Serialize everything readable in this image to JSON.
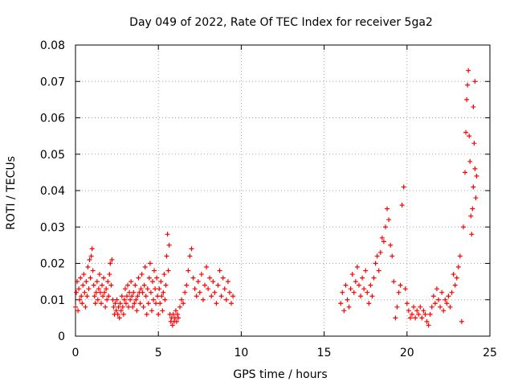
{
  "chart_data": {
    "type": "scatter",
    "title": "Day 049 of 2022, Rate Of TEC Index for receiver 5ga2",
    "xlabel": "GPS time / hours",
    "ylabel": "ROTI / TECUs",
    "xlim": [
      0,
      25
    ],
    "ylim": [
      0,
      0.08
    ],
    "xticks": [
      0,
      5,
      10,
      15,
      20,
      25
    ],
    "yticks": [
      0,
      0.01,
      0.02,
      0.03,
      0.04,
      0.05,
      0.06,
      0.07,
      0.08
    ],
    "xtick_labels": [
      "0",
      "5",
      "10",
      "15",
      "20",
      "25"
    ],
    "ytick_labels": [
      "0",
      "0.01",
      "0.02",
      "0.03",
      "0.04",
      "0.05",
      "0.06",
      "0.07",
      "0.08"
    ],
    "grid": true,
    "marker": "+",
    "color": "#ff0000",
    "series": [
      {
        "name": "ROTI",
        "points": [
          [
            0.0,
            0.008
          ],
          [
            0.05,
            0.012
          ],
          [
            0.1,
            0.015
          ],
          [
            0.15,
            0.007
          ],
          [
            0.2,
            0.013
          ],
          [
            0.25,
            0.01
          ],
          [
            0.3,
            0.016
          ],
          [
            0.35,
            0.011
          ],
          [
            0.4,
            0.009
          ],
          [
            0.45,
            0.014
          ],
          [
            0.5,
            0.017
          ],
          [
            0.55,
            0.012
          ],
          [
            0.6,
            0.008
          ],
          [
            0.65,
            0.015
          ],
          [
            0.7,
            0.011
          ],
          [
            0.75,
            0.019
          ],
          [
            0.8,
            0.013
          ],
          [
            0.85,
            0.021
          ],
          [
            0.9,
            0.016
          ],
          [
            0.95,
            0.022
          ],
          [
            1.0,
            0.024
          ],
          [
            1.05,
            0.018
          ],
          [
            1.1,
            0.014
          ],
          [
            1.15,
            0.011
          ],
          [
            1.2,
            0.009
          ],
          [
            1.25,
            0.012
          ],
          [
            1.3,
            0.015
          ],
          [
            1.35,
            0.01
          ],
          [
            1.4,
            0.013
          ],
          [
            1.45,
            0.017
          ],
          [
            1.5,
            0.012
          ],
          [
            1.55,
            0.009
          ],
          [
            1.6,
            0.014
          ],
          [
            1.65,
            0.011
          ],
          [
            1.7,
            0.016
          ],
          [
            1.75,
            0.012
          ],
          [
            1.8,
            0.008
          ],
          [
            1.85,
            0.013
          ],
          [
            1.9,
            0.01
          ],
          [
            1.95,
            0.015
          ],
          [
            2.0,
            0.011
          ],
          [
            2.05,
            0.017
          ],
          [
            2.1,
            0.02
          ],
          [
            2.15,
            0.014
          ],
          [
            2.2,
            0.021
          ],
          [
            2.25,
            0.01
          ],
          [
            2.3,
            0.008
          ],
          [
            2.35,
            0.006
          ],
          [
            2.4,
            0.009
          ],
          [
            2.45,
            0.007
          ],
          [
            2.5,
            0.01
          ],
          [
            2.55,
            0.006
          ],
          [
            2.6,
            0.008
          ],
          [
            2.65,
            0.005
          ],
          [
            2.7,
            0.009
          ],
          [
            2.75,
            0.007
          ],
          [
            2.8,
            0.011
          ],
          [
            2.85,
            0.008
          ],
          [
            2.9,
            0.006
          ],
          [
            2.95,
            0.01
          ],
          [
            3.0,
            0.013
          ],
          [
            3.05,
            0.009
          ],
          [
            3.1,
            0.011
          ],
          [
            3.15,
            0.014
          ],
          [
            3.2,
            0.008
          ],
          [
            3.25,
            0.012
          ],
          [
            3.3,
            0.01
          ],
          [
            3.35,
            0.015
          ],
          [
            3.4,
            0.011
          ],
          [
            3.45,
            0.008
          ],
          [
            3.5,
            0.012
          ],
          [
            3.55,
            0.009
          ],
          [
            3.6,
            0.014
          ],
          [
            3.65,
            0.01
          ],
          [
            3.7,
            0.007
          ],
          [
            3.75,
            0.011
          ],
          [
            3.8,
            0.016
          ],
          [
            3.85,
            0.012
          ],
          [
            3.9,
            0.009
          ],
          [
            3.95,
            0.013
          ],
          [
            4.0,
            0.017
          ],
          [
            4.05,
            0.012
          ],
          [
            4.1,
            0.008
          ],
          [
            4.15,
            0.014
          ],
          [
            4.2,
            0.019
          ],
          [
            4.25,
            0.011
          ],
          [
            4.3,
            0.006
          ],
          [
            4.35,
            0.013
          ],
          [
            4.4,
            0.009
          ],
          [
            4.45,
            0.016
          ],
          [
            4.5,
            0.02
          ],
          [
            4.55,
            0.012
          ],
          [
            4.6,
            0.007
          ],
          [
            4.65,
            0.015
          ],
          [
            4.7,
            0.01
          ],
          [
            4.75,
            0.018
          ],
          [
            4.8,
            0.013
          ],
          [
            4.85,
            0.009
          ],
          [
            4.9,
            0.016
          ],
          [
            4.95,
            0.011
          ],
          [
            5.0,
            0.006
          ],
          [
            5.05,
            0.013
          ],
          [
            5.1,
            0.009
          ],
          [
            5.15,
            0.015
          ],
          [
            5.2,
            0.011
          ],
          [
            5.25,
            0.007
          ],
          [
            5.3,
            0.012
          ],
          [
            5.35,
            0.017
          ],
          [
            5.4,
            0.01
          ],
          [
            5.45,
            0.014
          ],
          [
            5.5,
            0.022
          ],
          [
            5.55,
            0.028
          ],
          [
            5.6,
            0.018
          ],
          [
            5.65,
            0.025
          ],
          [
            5.7,
            0.006
          ],
          [
            5.75,
            0.004
          ],
          [
            5.8,
            0.005
          ],
          [
            5.85,
            0.003
          ],
          [
            5.9,
            0.006
          ],
          [
            5.95,
            0.004
          ],
          [
            6.0,
            0.005
          ],
          [
            6.05,
            0.007
          ],
          [
            6.1,
            0.004
          ],
          [
            6.15,
            0.006
          ],
          [
            6.2,
            0.005
          ],
          [
            6.3,
            0.008
          ],
          [
            6.4,
            0.01
          ],
          [
            6.5,
            0.009
          ],
          [
            6.6,
            0.012
          ],
          [
            6.7,
            0.014
          ],
          [
            6.8,
            0.018
          ],
          [
            6.9,
            0.022
          ],
          [
            7.0,
            0.024
          ],
          [
            7.1,
            0.016
          ],
          [
            7.2,
            0.013
          ],
          [
            7.3,
            0.011
          ],
          [
            7.4,
            0.015
          ],
          [
            7.5,
            0.012
          ],
          [
            7.6,
            0.017
          ],
          [
            7.7,
            0.01
          ],
          [
            7.8,
            0.014
          ],
          [
            7.9,
            0.019
          ],
          [
            8.0,
            0.013
          ],
          [
            8.1,
            0.016
          ],
          [
            8.2,
            0.011
          ],
          [
            8.3,
            0.015
          ],
          [
            8.4,
            0.012
          ],
          [
            8.5,
            0.009
          ],
          [
            8.6,
            0.014
          ],
          [
            8.7,
            0.018
          ],
          [
            8.8,
            0.011
          ],
          [
            8.9,
            0.016
          ],
          [
            9.0,
            0.013
          ],
          [
            9.1,
            0.01
          ],
          [
            9.2,
            0.015
          ],
          [
            9.3,
            0.012
          ],
          [
            9.4,
            0.009
          ],
          [
            9.5,
            0.011
          ],
          [
            16.0,
            0.009
          ],
          [
            16.1,
            0.012
          ],
          [
            16.2,
            0.007
          ],
          [
            16.3,
            0.014
          ],
          [
            16.4,
            0.01
          ],
          [
            16.5,
            0.008
          ],
          [
            16.6,
            0.013
          ],
          [
            16.7,
            0.017
          ],
          [
            16.8,
            0.012
          ],
          [
            16.9,
            0.015
          ],
          [
            17.0,
            0.019
          ],
          [
            17.1,
            0.014
          ],
          [
            17.2,
            0.011
          ],
          [
            17.3,
            0.016
          ],
          [
            17.4,
            0.013
          ],
          [
            17.5,
            0.018
          ],
          [
            17.6,
            0.012
          ],
          [
            17.7,
            0.009
          ],
          [
            17.8,
            0.014
          ],
          [
            17.9,
            0.011
          ],
          [
            18.0,
            0.016
          ],
          [
            18.1,
            0.02
          ],
          [
            18.2,
            0.022
          ],
          [
            18.3,
            0.018
          ],
          [
            18.4,
            0.023
          ],
          [
            18.5,
            0.027
          ],
          [
            18.6,
            0.026
          ],
          [
            18.7,
            0.03
          ],
          [
            18.8,
            0.035
          ],
          [
            18.9,
            0.032
          ],
          [
            19.0,
            0.025
          ],
          [
            19.1,
            0.022
          ],
          [
            19.2,
            0.015
          ],
          [
            19.3,
            0.005
          ],
          [
            19.4,
            0.008
          ],
          [
            19.5,
            0.012
          ],
          [
            19.6,
            0.014
          ],
          [
            19.7,
            0.036
          ],
          [
            19.8,
            0.041
          ],
          [
            19.9,
            0.013
          ],
          [
            20.0,
            0.009
          ],
          [
            20.1,
            0.007
          ],
          [
            20.2,
            0.005
          ],
          [
            20.3,
            0.006
          ],
          [
            20.4,
            0.008
          ],
          [
            20.5,
            0.005
          ],
          [
            20.6,
            0.007
          ],
          [
            20.7,
            0.006
          ],
          [
            20.8,
            0.008
          ],
          [
            20.9,
            0.005
          ],
          [
            21.0,
            0.007
          ],
          [
            21.1,
            0.006
          ],
          [
            21.2,
            0.004
          ],
          [
            21.3,
            0.003
          ],
          [
            21.4,
            0.006
          ],
          [
            21.5,
            0.008
          ],
          [
            21.6,
            0.011
          ],
          [
            21.7,
            0.009
          ],
          [
            21.8,
            0.013
          ],
          [
            21.9,
            0.01
          ],
          [
            22.0,
            0.008
          ],
          [
            22.1,
            0.012
          ],
          [
            22.2,
            0.007
          ],
          [
            22.3,
            0.01
          ],
          [
            22.4,
            0.009
          ],
          [
            22.5,
            0.011
          ],
          [
            22.6,
            0.008
          ],
          [
            22.7,
            0.012
          ],
          [
            22.8,
            0.017
          ],
          [
            22.9,
            0.014
          ],
          [
            23.0,
            0.016
          ],
          [
            23.1,
            0.019
          ],
          [
            23.2,
            0.022
          ],
          [
            23.3,
            0.004
          ],
          [
            23.4,
            0.03
          ],
          [
            23.5,
            0.045
          ],
          [
            23.55,
            0.056
          ],
          [
            23.6,
            0.065
          ],
          [
            23.65,
            0.069
          ],
          [
            23.7,
            0.073
          ],
          [
            23.75,
            0.055
          ],
          [
            23.8,
            0.048
          ],
          [
            23.85,
            0.033
          ],
          [
            23.9,
            0.028
          ],
          [
            23.95,
            0.035
          ],
          [
            24.0,
            0.041
          ],
          [
            24.0,
            0.063
          ],
          [
            24.05,
            0.053
          ],
          [
            24.1,
            0.07
          ],
          [
            24.1,
            0.046
          ],
          [
            24.15,
            0.038
          ],
          [
            24.2,
            0.044
          ]
        ]
      }
    ]
  }
}
